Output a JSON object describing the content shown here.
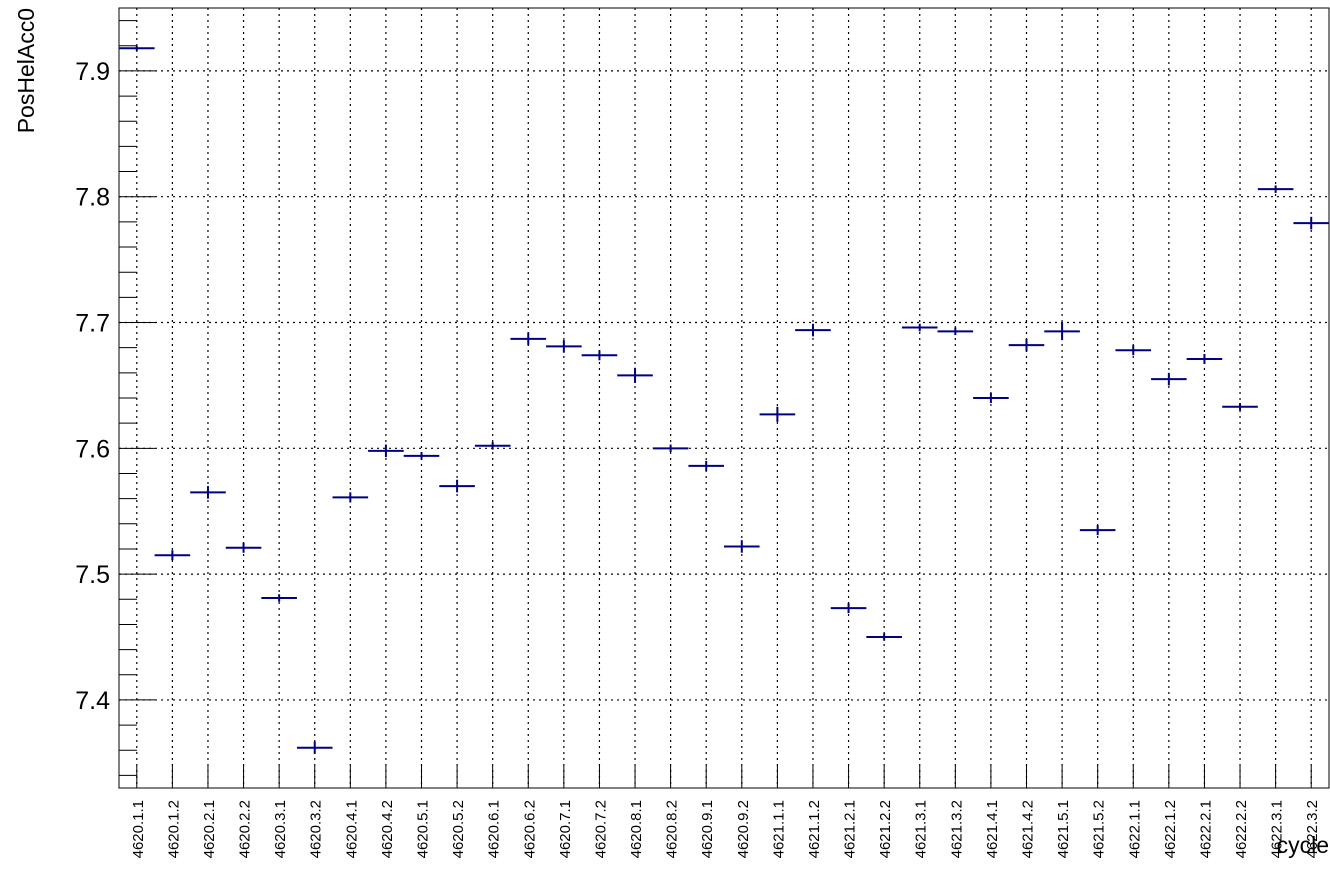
{
  "chart_data": {
    "type": "scatter",
    "title": "",
    "xlabel": "cycle",
    "ylabel": "PosHelAcc0",
    "categories": [
      "4620.1.1",
      "4620.1.2",
      "4620.2.1",
      "4620.2.2",
      "4620.3.1",
      "4620.3.2",
      "4620.4.1",
      "4620.4.2",
      "4620.5.1",
      "4620.5.2",
      "4620.6.1",
      "4620.6.2",
      "4620.7.1",
      "4620.7.2",
      "4620.8.1",
      "4620.8.2",
      "4620.9.1",
      "4620.9.2",
      "4621.1.1",
      "4621.1.2",
      "4621.2.1",
      "4621.2.2",
      "4621.3.1",
      "4621.3.2",
      "4621.4.1",
      "4621.4.2",
      "4621.5.1",
      "4621.5.2",
      "4622.1.1",
      "4622.1.2",
      "4622.2.1",
      "4622.2.2",
      "4622.3.1",
      "4622.3.2"
    ],
    "series": [
      {
        "values": [
          7.918,
          7.515,
          7.565,
          7.521,
          7.481,
          7.362,
          7.561,
          7.598,
          7.594,
          7.57,
          7.602,
          7.687,
          7.681,
          7.674,
          7.658,
          7.6,
          7.586,
          7.522,
          7.627,
          7.694,
          7.473,
          7.45,
          7.696,
          7.693,
          7.64,
          7.682,
          7.693,
          7.535,
          7.678,
          7.655,
          7.671,
          7.633,
          7.806,
          7.779
        ],
        "errors": [
          0.002,
          0.004,
          0.005,
          0.004,
          0.003,
          0.005,
          0.004,
          0.005,
          0.003,
          0.005,
          0.003,
          0.005,
          0.005,
          0.004,
          0.006,
          0.003,
          0.004,
          0.005,
          0.006,
          0.005,
          0.004,
          0.003,
          0.003,
          0.003,
          0.004,
          0.005,
          0.007,
          0.004,
          0.004,
          0.005,
          0.004,
          0.003,
          0.003,
          0.005
        ]
      }
    ],
    "ylim": [
      7.33,
      7.95
    ],
    "yticks": [
      7.4,
      7.5,
      7.6,
      7.7,
      7.8,
      7.9
    ],
    "ytick_labels": [
      "7.4",
      "7.5",
      "7.6",
      "7.7",
      "7.8",
      "7.9"
    ],
    "grid": true,
    "marker_color": "#000080"
  }
}
